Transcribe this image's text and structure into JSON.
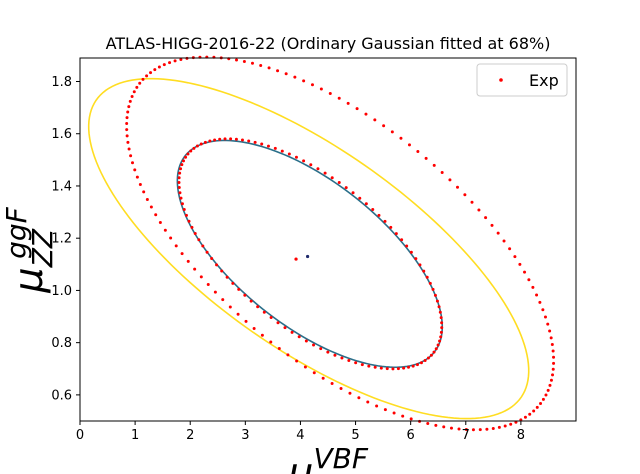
{
  "chart_data": {
    "type": "scatter",
    "title": "ATLAS-HIGG-2016-22 (Ordinary Gaussian fitted at 68%)",
    "xlabel": "μ^VBF",
    "ylabel": "μ^ggF_ZZ",
    "xlim": [
      0,
      9
    ],
    "ylim": [
      0.5,
      1.89
    ],
    "x_ticks": [
      "0",
      "1",
      "2",
      "3",
      "4",
      "5",
      "6",
      "7",
      "8"
    ],
    "y_ticks": [
      "0.6",
      "0.8",
      "1.0",
      "1.2",
      "1.4",
      "1.6",
      "1.8"
    ],
    "grid": false,
    "legend_position": "top-right",
    "legend": [
      "Exp"
    ],
    "series": [
      {
        "name": "Exp",
        "kind": "points",
        "color": "#ff0000",
        "contours": [
          {
            "level": "outer",
            "cx": 4.72,
            "cy": 1.18,
            "rx": 3.9,
            "ry": 0.55,
            "tilt": -0.118
          },
          {
            "level": "inner",
            "cx": 4.18,
            "cy": 1.14,
            "rx": 2.4,
            "ry": 0.34,
            "tilt": -0.118
          }
        ],
        "center": {
          "x": 3.92,
          "y": 1.12
        }
      },
      {
        "kind": "ellipse",
        "color": "#ffdd22",
        "cx": 4.15,
        "cy": 1.16,
        "rx": 4.02,
        "ry": 0.45,
        "tilt": -0.118
      },
      {
        "kind": "ellipse",
        "color": "#2a6f8a",
        "cx": 4.17,
        "cy": 1.14,
        "rx": 2.42,
        "ry": 0.33,
        "tilt": -0.118,
        "center": {
          "x": 4.13,
          "y": 1.13
        }
      }
    ]
  }
}
